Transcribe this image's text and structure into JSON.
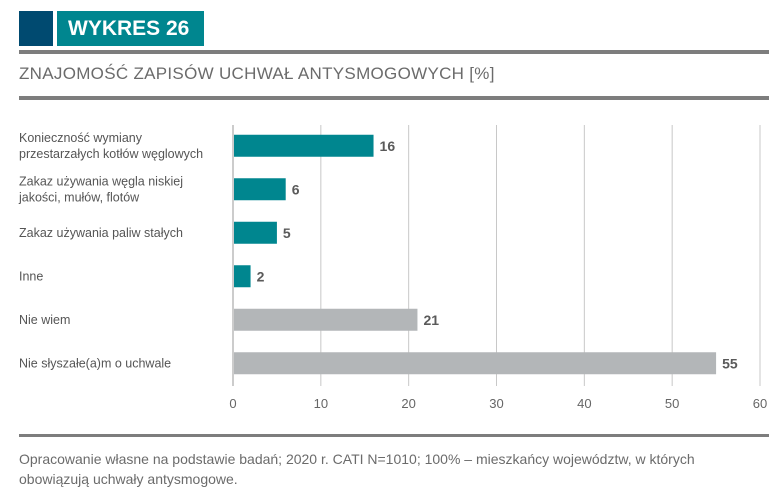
{
  "header": {
    "badge": "WYKRES 26",
    "title": "ZNAJOMOŚĆ ZAPISÓW UCHWAŁ ANTYSMOGOWYCH [%]"
  },
  "footer": "Opracowanie własne na podstawie badań; 2020 r. CATI N=1010; 100% – mieszkańcy województw, w których obowiązują uchwały antysmogowe.",
  "colors": {
    "accent": "#00868f",
    "neutral": "#b3b6b8",
    "dark": "#004a70"
  },
  "chart_data": {
    "type": "bar",
    "orientation": "horizontal",
    "categories": [
      [
        "Konieczność wymiany",
        "przestarzałych kotłów węglowych"
      ],
      [
        "Zakaz używania węgla niskiej",
        "jakości, mułów, flotów"
      ],
      [
        "Zakaz używania paliw stałych"
      ],
      [
        "Inne"
      ],
      [
        "Nie wiem"
      ],
      [
        "Nie słyszałe(a)m o uchwale"
      ]
    ],
    "values": [
      16,
      6,
      5,
      2,
      21,
      55
    ],
    "bar_colors": [
      "accent",
      "accent",
      "accent",
      "accent",
      "neutral",
      "neutral"
    ],
    "xlim": [
      0,
      60
    ],
    "xticks": [
      0,
      10,
      20,
      30,
      40,
      50,
      60
    ],
    "grid": true,
    "unit": "%"
  }
}
